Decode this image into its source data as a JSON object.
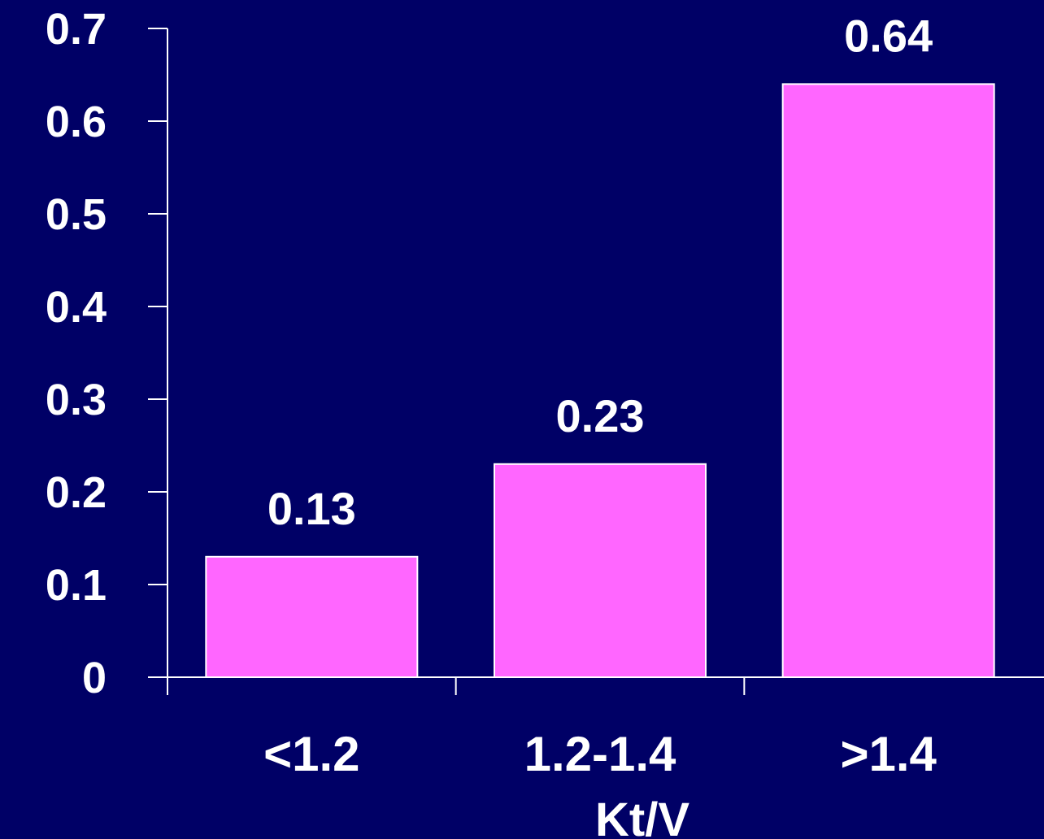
{
  "chart_data": {
    "type": "bar",
    "categories": [
      "<1.2",
      "1.2-1.4",
      ">1.4"
    ],
    "values": [
      0.13,
      0.23,
      0.64
    ],
    "data_labels": [
      "0.13",
      "0.23",
      "0.64"
    ],
    "xlabel": "Kt/V",
    "ylabel": "",
    "ylim": [
      0,
      0.7
    ],
    "yticks": [
      0,
      0.1,
      0.2,
      0.3,
      0.4,
      0.5,
      0.6,
      0.7
    ],
    "ytick_labels": [
      "0",
      "0.1",
      "0.2",
      "0.3",
      "0.4",
      "0.5",
      "0.6",
      "0.7"
    ],
    "grid": false,
    "legend": "none",
    "colors": {
      "background": "#000066",
      "bar": "#ff66ff",
      "axis": "#ffffff",
      "text": "#ffffff"
    }
  }
}
